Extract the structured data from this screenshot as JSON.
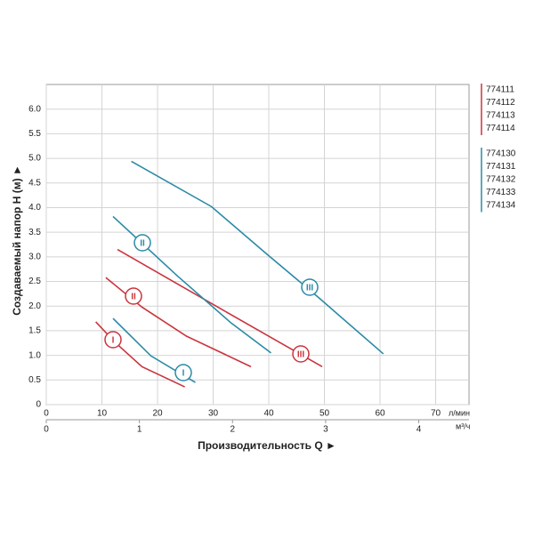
{
  "chart_data": {
    "type": "line",
    "xlabel": "Производительность Q ►",
    "ylabel": "Создаваемый напор H (м) ►",
    "x_unit": "л/мин",
    "x2_unit": "м³/ч",
    "xlim": [
      0,
      76
    ],
    "xticks": [
      0,
      10,
      20,
      30,
      40,
      50,
      60,
      70
    ],
    "x2lim": [
      0,
      4.54
    ],
    "x2ticks": [
      0,
      1,
      2,
      3,
      4
    ],
    "ylim": [
      0,
      6.5
    ],
    "yticks": [
      0,
      0.5,
      {
        "value": 1,
        "label": "1.0"
      },
      1.5,
      {
        "value": 2,
        "label": "2.0"
      },
      2.5,
      {
        "value": 3,
        "label": "3.0"
      },
      3.5,
      {
        "value": 4,
        "label": "4.0"
      },
      4.5,
      {
        "value": 5,
        "label": "5.0"
      },
      5.5,
      {
        "value": 6,
        "label": "6.0"
      }
    ],
    "grid": true,
    "series": [
      {
        "name": "I",
        "color": "#c9353d",
        "x": [
          8.9,
          12.4,
          17.2,
          24.9
        ],
        "values": [
          1.68,
          1.26,
          0.77,
          0.36
        ]
      },
      {
        "name": "II",
        "color": "#c9353d",
        "x": [
          10.7,
          17.2,
          25.2,
          36.8
        ],
        "values": [
          2.58,
          1.98,
          1.39,
          0.77
        ]
      },
      {
        "name": "III",
        "color": "#c9353d",
        "x": [
          12.8,
          31.6,
          49.6
        ],
        "values": [
          3.15,
          1.93,
          0.77
        ]
      },
      {
        "name": "I",
        "color": "#2b8aa6",
        "x": [
          12.0,
          18.8,
          26.8
        ],
        "values": [
          1.75,
          0.99,
          0.45
        ]
      },
      {
        "name": "II",
        "color": "#2b8aa6",
        "x": [
          12.0,
          23.6,
          33.2,
          40.4
        ],
        "values": [
          3.82,
          2.61,
          1.66,
          1.05
        ]
      },
      {
        "name": "III",
        "color": "#2b8aa6",
        "x": [
          15.3,
          29.7,
          39.6,
          49.1,
          60.6
        ],
        "values": [
          4.94,
          4.02,
          3.06,
          2.16,
          1.03
        ]
      }
    ],
    "legend_groups": [
      {
        "color": "#c9353d",
        "items": [
          "774111",
          "774112",
          "774113",
          "774114"
        ]
      },
      {
        "color": "#2b8aa6",
        "items": [
          "774130",
          "774131",
          "774132",
          "774133",
          "774134"
        ]
      }
    ]
  }
}
